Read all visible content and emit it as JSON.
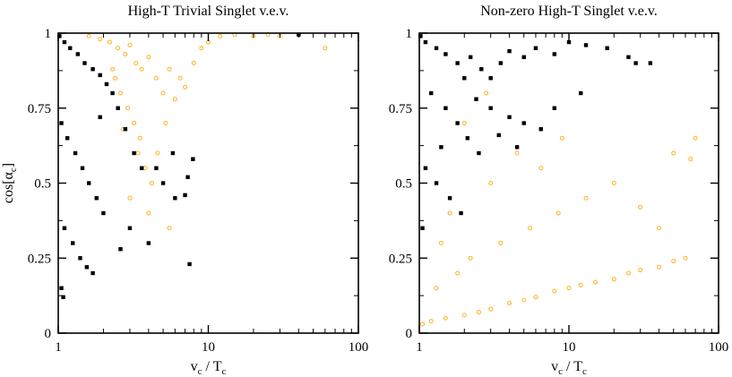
{
  "colors": {
    "black_series": "#000000",
    "orange_series": "#ffb21f",
    "frame": "#000000"
  },
  "chart_data": [
    {
      "type": "scatter",
      "title": "High-T Trivial Singlet v.e.v.",
      "xlabel": {
        "main": "v",
        "sub": "c",
        "rest": " / T",
        "sub2": "c"
      },
      "ylabel": {
        "main": "cos[α",
        "sub": "c",
        "close": "]"
      },
      "xscale": "log",
      "xlim": [
        1,
        100
      ],
      "ylim": [
        0,
        1
      ],
      "x_ticks": [
        {
          "v": 1,
          "label": "1"
        },
        {
          "v": 10,
          "label": "10"
        },
        {
          "v": 100,
          "label": "100"
        }
      ],
      "y_ticks": [
        {
          "v": 0,
          "label": "0"
        },
        {
          "v": 0.25,
          "label": "0.25"
        },
        {
          "v": 0.5,
          "label": "0.5"
        },
        {
          "v": 0.75,
          "label": "0.75"
        },
        {
          "v": 1,
          "label": "1"
        }
      ],
      "series": [
        {
          "marker": "open-circle",
          "color": "#ffb21f",
          "points": [
            [
              1.6,
              0.99
            ],
            [
              1.9,
              0.98
            ],
            [
              2.2,
              0.97
            ],
            [
              2.5,
              0.95
            ],
            [
              2.8,
              0.93
            ],
            [
              3.0,
              0.96
            ],
            [
              3.3,
              0.9
            ],
            [
              3.6,
              0.88
            ],
            [
              4.0,
              0.92
            ],
            [
              4.5,
              0.85
            ],
            [
              5.0,
              0.8
            ],
            [
              5.5,
              0.88
            ],
            [
              6.0,
              0.78
            ],
            [
              7.0,
              0.82
            ],
            [
              8.0,
              0.9
            ],
            [
              9.0,
              0.95
            ],
            [
              10,
              0.97
            ],
            [
              12,
              0.99
            ],
            [
              15,
              0.995
            ],
            [
              20,
              0.99
            ],
            [
              25,
              0.995
            ],
            [
              30,
              0.99
            ],
            [
              40,
              0.995
            ],
            [
              60,
              0.95
            ],
            [
              2.4,
              0.85
            ],
            [
              2.6,
              0.8
            ],
            [
              2.9,
              0.75
            ],
            [
              3.2,
              0.7
            ],
            [
              3.5,
              0.65
            ],
            [
              3.8,
              0.55
            ],
            [
              4.2,
              0.5
            ],
            [
              4.6,
              0.6
            ],
            [
              5.2,
              0.7
            ],
            [
              6.5,
              0.85
            ],
            [
              3.0,
              0.45
            ],
            [
              4.0,
              0.4
            ],
            [
              5.5,
              0.35
            ],
            [
              3.4,
              0.6
            ],
            [
              2.7,
              0.68
            ],
            [
              2.3,
              0.88
            ]
          ]
        },
        {
          "marker": "filled-square",
          "color": "#000000",
          "points": [
            [
              1.02,
              0.99
            ],
            [
              1.1,
              0.97
            ],
            [
              1.2,
              0.95
            ],
            [
              1.35,
              0.93
            ],
            [
              1.5,
              0.9
            ],
            [
              1.7,
              0.88
            ],
            [
              1.9,
              0.86
            ],
            [
              2.1,
              0.83
            ],
            [
              2.3,
              0.8
            ],
            [
              1.05,
              0.7
            ],
            [
              1.15,
              0.65
            ],
            [
              1.3,
              0.6
            ],
            [
              1.45,
              0.55
            ],
            [
              1.6,
              0.5
            ],
            [
              1.8,
              0.45
            ],
            [
              2.0,
              0.4
            ],
            [
              1.1,
              0.35
            ],
            [
              1.25,
              0.3
            ],
            [
              1.4,
              0.25
            ],
            [
              1.55,
              0.22
            ],
            [
              1.7,
              0.2
            ],
            [
              1.05,
              0.15
            ],
            [
              1.08,
              0.12
            ],
            [
              2.5,
              0.75
            ],
            [
              2.8,
              0.68
            ],
            [
              3.2,
              0.6
            ],
            [
              3.6,
              0.55
            ],
            [
              4.0,
              0.3
            ],
            [
              5.0,
              0.5
            ],
            [
              6.0,
              0.45
            ],
            [
              7.0,
              0.46
            ],
            [
              7.3,
              0.52
            ],
            [
              7.5,
              0.23
            ],
            [
              7.9,
              0.58
            ],
            [
              5.8,
              0.6
            ],
            [
              4.5,
              0.55
            ],
            [
              3.0,
              0.35
            ],
            [
              2.6,
              0.28
            ],
            [
              1.9,
              0.72
            ],
            [
              40,
              0.995
            ]
          ]
        }
      ]
    },
    {
      "type": "scatter",
      "title": "Non-zero High-T Singlet v.e.v.",
      "xlabel": {
        "main": "v",
        "sub": "c",
        "rest": " / T",
        "sub2": "c"
      },
      "ylabel": {
        "main": "",
        "sub": "",
        "close": ""
      },
      "xscale": "log",
      "xlim": [
        1,
        100
      ],
      "ylim": [
        0,
        1
      ],
      "x_ticks": [
        {
          "v": 1,
          "label": "1"
        },
        {
          "v": 10,
          "label": "10"
        },
        {
          "v": 100,
          "label": "100"
        }
      ],
      "y_ticks": [
        {
          "v": 0,
          "label": "0"
        },
        {
          "v": 0.25,
          "label": "0.25"
        },
        {
          "v": 0.5,
          "label": "0.5"
        },
        {
          "v": 0.75,
          "label": "0.75"
        },
        {
          "v": 1,
          "label": "1"
        }
      ],
      "series": [
        {
          "marker": "open-circle",
          "color": "#ffb21f",
          "points": [
            [
              1.05,
              0.03
            ],
            [
              1.2,
              0.04
            ],
            [
              1.5,
              0.05
            ],
            [
              2.0,
              0.06
            ],
            [
              2.5,
              0.07
            ],
            [
              3.0,
              0.08
            ],
            [
              4.0,
              0.1
            ],
            [
              5.0,
              0.11
            ],
            [
              6.0,
              0.12
            ],
            [
              8.0,
              0.14
            ],
            [
              10,
              0.15
            ],
            [
              12,
              0.16
            ],
            [
              15,
              0.17
            ],
            [
              20,
              0.18
            ],
            [
              25,
              0.2
            ],
            [
              30,
              0.21
            ],
            [
              40,
              0.22
            ],
            [
              50,
              0.24
            ],
            [
              60,
              0.25
            ],
            [
              1.3,
              0.15
            ],
            [
              1.8,
              0.2
            ],
            [
              2.2,
              0.25
            ],
            [
              3.5,
              0.3
            ],
            [
              5.5,
              0.35
            ],
            [
              8.5,
              0.4
            ],
            [
              13,
              0.45
            ],
            [
              20,
              0.5
            ],
            [
              30,
              0.42
            ],
            [
              40,
              0.35
            ],
            [
              50,
              0.6
            ],
            [
              65,
              0.58
            ],
            [
              70,
              0.65
            ],
            [
              3.0,
              0.5
            ],
            [
              4.5,
              0.6
            ],
            [
              6.5,
              0.55
            ],
            [
              9.0,
              0.65
            ],
            [
              2.0,
              0.7
            ],
            [
              2.8,
              0.8
            ],
            [
              1.6,
              0.4
            ],
            [
              1.4,
              0.3
            ]
          ]
        },
        {
          "marker": "filled-square",
          "color": "#000000",
          "points": [
            [
              1.02,
              0.99
            ],
            [
              1.1,
              0.97
            ],
            [
              1.3,
              0.95
            ],
            [
              1.5,
              0.93
            ],
            [
              1.8,
              0.9
            ],
            [
              2.2,
              0.92
            ],
            [
              2.6,
              0.88
            ],
            [
              3.0,
              0.85
            ],
            [
              3.5,
              0.9
            ],
            [
              4.0,
              0.94
            ],
            [
              5.0,
              0.92
            ],
            [
              6.0,
              0.95
            ],
            [
              8.0,
              0.93
            ],
            [
              10,
              0.97
            ],
            [
              13,
              0.96
            ],
            [
              18,
              0.95
            ],
            [
              25,
              0.92
            ],
            [
              35,
              0.9
            ],
            [
              1.2,
              0.8
            ],
            [
              1.5,
              0.75
            ],
            [
              1.8,
              0.7
            ],
            [
              2.1,
              0.65
            ],
            [
              2.5,
              0.6
            ],
            [
              1.1,
              0.55
            ],
            [
              1.3,
              0.5
            ],
            [
              1.6,
              0.45
            ],
            [
              1.9,
              0.4
            ],
            [
              1.05,
              0.35
            ],
            [
              3.0,
              0.75
            ],
            [
              4.0,
              0.72
            ],
            [
              5.0,
              0.7
            ],
            [
              6.5,
              0.68
            ],
            [
              8.0,
              0.75
            ],
            [
              12,
              0.8
            ],
            [
              2.0,
              0.85
            ],
            [
              2.4,
              0.78
            ],
            [
              3.4,
              0.66
            ],
            [
              4.5,
              0.62
            ],
            [
              28,
              0.9
            ],
            [
              1.4,
              0.62
            ]
          ]
        }
      ]
    }
  ]
}
